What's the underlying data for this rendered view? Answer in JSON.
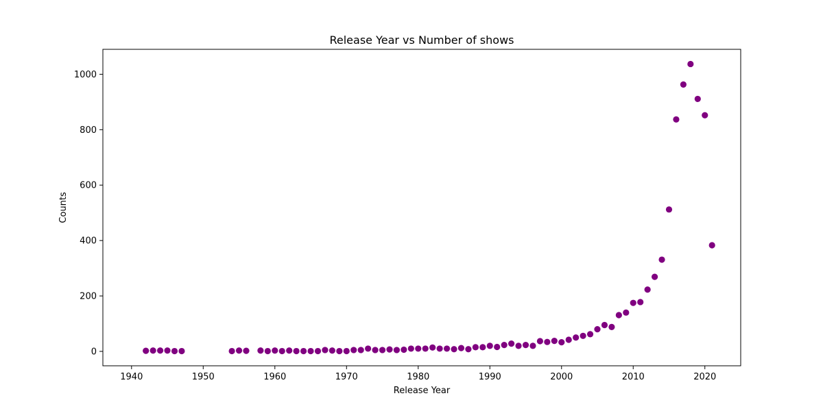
{
  "chart_data": {
    "type": "scatter",
    "title": "Release Year vs Number of shows",
    "xlabel": "Release Year",
    "ylabel": "Counts",
    "xlim": [
      1936,
      2025
    ],
    "ylim": [
      -52,
      1090
    ],
    "x_ticks": [
      1940,
      1950,
      1960,
      1970,
      1980,
      1990,
      2000,
      2010,
      2020
    ],
    "y_ticks": [
      0,
      200,
      400,
      600,
      800,
      1000
    ],
    "marker_color": "#800080",
    "grid": false,
    "series": [
      {
        "x": [
          1942,
          1943,
          1944,
          1945,
          1946,
          1947,
          1954,
          1955,
          1956,
          1958,
          1959,
          1960,
          1961,
          1962,
          1963,
          1964,
          1965,
          1966,
          1967,
          1968,
          1969,
          1970,
          1971,
          1972,
          1973,
          1974,
          1975,
          1976,
          1977,
          1978,
          1979,
          1980,
          1981,
          1982,
          1983,
          1984,
          1985,
          1986,
          1987,
          1988,
          1989,
          1990,
          1991,
          1992,
          1993,
          1994,
          1995,
          1996,
          1997,
          1998,
          1999,
          2000,
          2001,
          2002,
          2003,
          2004,
          2005,
          2006,
          2007,
          2008,
          2009,
          2010,
          2011,
          2012,
          2013,
          2014,
          2015,
          2016,
          2017,
          2018,
          2019,
          2020,
          2021
        ],
        "y": [
          2,
          3,
          3,
          3,
          1,
          1,
          1,
          3,
          2,
          3,
          1,
          3,
          1,
          3,
          1,
          1,
          1,
          1,
          5,
          3,
          1,
          1,
          5,
          5,
          10,
          5,
          5,
          7,
          5,
          6,
          10,
          10,
          10,
          14,
          10,
          10,
          8,
          12,
          8,
          15,
          15,
          20,
          16,
          23,
          28,
          20,
          23,
          20,
          37,
          34,
          38,
          33,
          42,
          50,
          56,
          62,
          80,
          95,
          88,
          131,
          140,
          175,
          178,
          223,
          269,
          331,
          512,
          837,
          963,
          1037,
          911,
          852,
          383
        ]
      }
    ]
  }
}
